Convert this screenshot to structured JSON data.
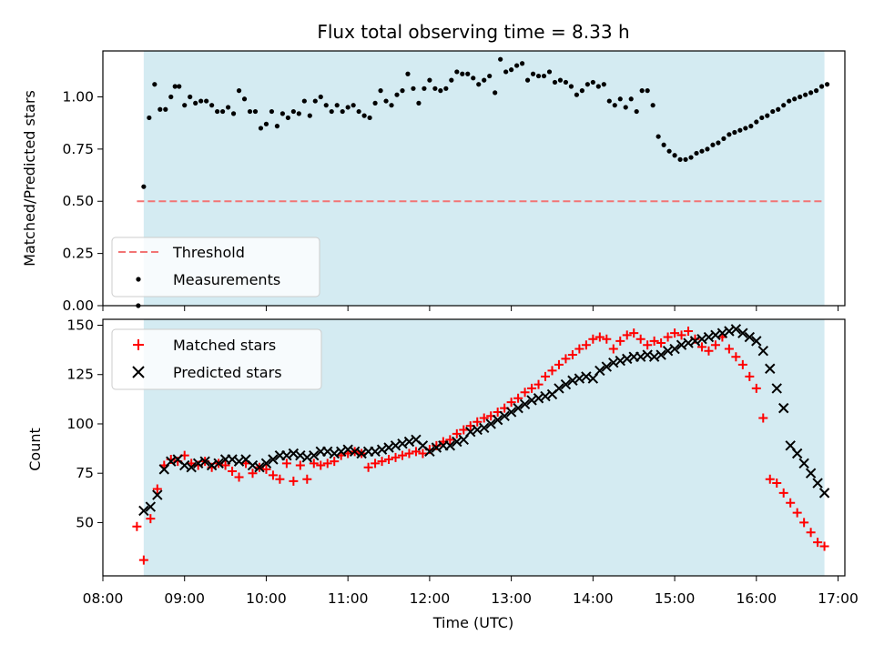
{
  "chart_data": [
    {
      "type": "scatter",
      "title": "Flux total observing time = 8.33 h",
      "xlabel": "",
      "ylabel": "Matched/Predicted stars",
      "xlim": [
        "08:00",
        "17:05"
      ],
      "ylim": [
        0,
        1.22
      ],
      "yticks": [
        "0.00",
        "0.25",
        "0.50",
        "0.75",
        "1.00"
      ],
      "shaded_region": {
        "start": "08:30",
        "end": "16:50",
        "color": "#d4ebf2"
      },
      "legend_position": "lower-left",
      "threshold": {
        "name": "Threshold",
        "value": 0.5,
        "start": "08:25",
        "end": "16:50",
        "color": "#f27474"
      },
      "series": [
        {
          "name": "Measurements",
          "color": "#000000",
          "marker": "dot",
          "x": [
            "08:26",
            "08:30",
            "08:34",
            "08:38",
            "08:42",
            "08:46",
            "08:50",
            "08:53",
            "08:56",
            "09:00",
            "09:04",
            "09:08",
            "09:12",
            "09:16",
            "09:20",
            "09:24",
            "09:28",
            "09:32",
            "09:36",
            "09:40",
            "09:44",
            "09:48",
            "09:52",
            "09:56",
            "10:00",
            "10:04",
            "10:08",
            "10:12",
            "10:16",
            "10:20",
            "10:24",
            "10:28",
            "10:32",
            "10:36",
            "10:40",
            "10:44",
            "10:48",
            "10:52",
            "10:56",
            "11:00",
            "11:04",
            "11:08",
            "11:12",
            "11:16",
            "11:20",
            "11:24",
            "11:28",
            "11:32",
            "11:36",
            "11:40",
            "11:44",
            "11:48",
            "11:52",
            "11:56",
            "12:00",
            "12:04",
            "12:08",
            "12:12",
            "12:16",
            "12:20",
            "12:24",
            "12:28",
            "12:32",
            "12:36",
            "12:40",
            "12:44",
            "12:48",
            "12:52",
            "12:56",
            "13:00",
            "13:04",
            "13:08",
            "13:12",
            "13:16",
            "13:20",
            "13:24",
            "13:28",
            "13:32",
            "13:36",
            "13:40",
            "13:44",
            "13:48",
            "13:52",
            "13:56",
            "14:00",
            "14:04",
            "14:08",
            "14:12",
            "14:16",
            "14:20",
            "14:24",
            "14:28",
            "14:32",
            "14:36",
            "14:40",
            "14:44",
            "14:48",
            "14:52",
            "14:56",
            "15:00",
            "15:04",
            "15:08",
            "15:12",
            "15:16",
            "15:20",
            "15:24",
            "15:28",
            "15:32",
            "15:36",
            "15:40",
            "15:44",
            "15:48",
            "15:52",
            "15:56",
            "16:00",
            "16:04",
            "16:08",
            "16:12",
            "16:16",
            "16:20",
            "16:24",
            "16:28",
            "16:32",
            "16:36",
            "16:40",
            "16:44",
            "16:48",
            "16:52"
          ],
          "y": [
            0.0,
            0.57,
            0.9,
            1.06,
            0.94,
            0.94,
            1.0,
            1.05,
            1.05,
            0.96,
            1.0,
            0.97,
            0.98,
            0.98,
            0.96,
            0.93,
            0.93,
            0.95,
            0.92,
            1.03,
            0.99,
            0.93,
            0.93,
            0.85,
            0.87,
            0.93,
            0.86,
            0.92,
            0.9,
            0.93,
            0.92,
            0.98,
            0.91,
            0.98,
            1.0,
            0.96,
            0.93,
            0.96,
            0.93,
            0.95,
            0.96,
            0.93,
            0.91,
            0.9,
            0.97,
            1.03,
            0.98,
            0.96,
            1.01,
            1.03,
            1.11,
            1.04,
            0.97,
            1.04,
            1.08,
            1.04,
            1.03,
            1.04,
            1.08,
            1.12,
            1.11,
            1.11,
            1.09,
            1.06,
            1.08,
            1.1,
            1.02,
            1.18,
            1.12,
            1.13,
            1.15,
            1.16,
            1.08,
            1.11,
            1.1,
            1.1,
            1.12,
            1.07,
            1.08,
            1.07,
            1.05,
            1.01,
            1.03,
            1.06,
            1.07,
            1.05,
            1.06,
            0.98,
            0.96,
            0.99,
            0.95,
            0.99,
            0.93,
            1.03,
            1.03,
            0.96,
            0.81,
            0.77,
            0.74,
            0.72,
            0.7,
            0.7,
            0.71,
            0.73,
            0.74,
            0.75,
            0.77,
            0.78,
            0.8,
            0.82,
            0.83,
            0.84,
            0.85,
            0.86,
            0.88,
            0.9,
            0.91,
            0.93,
            0.94,
            0.96,
            0.98,
            0.99,
            1.0,
            1.01,
            1.02,
            1.03,
            1.05,
            1.06
          ]
        }
      ]
    },
    {
      "type": "scatter",
      "title": "",
      "xlabel": "Time (UTC)",
      "ylabel": "Count",
      "xlim": [
        "08:00",
        "17:05"
      ],
      "ylim": [
        23,
        153
      ],
      "xticks": [
        "08:00",
        "09:00",
        "10:00",
        "11:00",
        "12:00",
        "13:00",
        "14:00",
        "15:00",
        "16:00",
        "17:00"
      ],
      "yticks": [
        "50",
        "75",
        "100",
        "125",
        "150"
      ],
      "shaded_region": {
        "start": "08:30",
        "end": "16:50",
        "color": "#d4ebf2"
      },
      "legend_position": "upper-left",
      "series": [
        {
          "name": "Matched stars",
          "color": "#ff0000",
          "marker": "plus",
          "x": [
            "08:25",
            "08:30",
            "08:35",
            "08:40",
            "08:45",
            "08:50",
            "08:55",
            "09:00",
            "09:05",
            "09:10",
            "09:15",
            "09:20",
            "09:25",
            "09:30",
            "09:35",
            "09:40",
            "09:45",
            "09:50",
            "09:55",
            "10:00",
            "10:05",
            "10:10",
            "10:15",
            "10:20",
            "10:25",
            "10:30",
            "10:35",
            "10:40",
            "10:45",
            "10:50",
            "10:55",
            "11:00",
            "11:05",
            "11:10",
            "11:15",
            "11:20",
            "11:25",
            "11:30",
            "11:35",
            "11:40",
            "11:45",
            "11:50",
            "11:55",
            "12:00",
            "12:05",
            "12:10",
            "12:15",
            "12:20",
            "12:25",
            "12:30",
            "12:35",
            "12:40",
            "12:45",
            "12:50",
            "12:55",
            "13:00",
            "13:05",
            "13:10",
            "13:15",
            "13:20",
            "13:25",
            "13:30",
            "13:35",
            "13:40",
            "13:45",
            "13:50",
            "13:55",
            "14:00",
            "14:05",
            "14:10",
            "14:15",
            "14:20",
            "14:25",
            "14:30",
            "14:35",
            "14:40",
            "14:45",
            "14:50",
            "14:55",
            "15:00",
            "15:05",
            "15:10",
            "15:15",
            "15:20",
            "15:25",
            "15:30",
            "15:35",
            "15:40",
            "15:45",
            "15:50",
            "15:55",
            "16:00",
            "16:05",
            "16:10",
            "16:15",
            "16:20",
            "16:25",
            "16:30",
            "16:35",
            "16:40",
            "16:45",
            "16:50"
          ],
          "y": [
            48,
            31,
            52,
            67,
            79,
            82,
            81,
            84,
            80,
            79,
            81,
            78,
            80,
            79,
            76,
            73,
            80,
            75,
            78,
            77,
            74,
            72,
            80,
            71,
            79,
            72,
            80,
            79,
            80,
            81,
            84,
            85,
            86,
            85,
            78,
            80,
            81,
            82,
            83,
            84,
            85,
            86,
            85,
            87,
            89,
            91,
            92,
            95,
            97,
            99,
            101,
            103,
            104,
            106,
            108,
            111,
            113,
            116,
            118,
            120,
            124,
            127,
            130,
            133,
            135,
            138,
            140,
            143,
            144,
            143,
            138,
            142,
            145,
            146,
            143,
            140,
            142,
            141,
            144,
            146,
            145,
            147,
            143,
            139,
            137,
            140,
            144,
            138,
            134,
            130,
            124,
            118,
            103,
            72,
            70,
            65,
            60,
            55,
            50,
            45,
            40,
            38
          ],
          "note": ""
        },
        {
          "name": "Predicted stars",
          "color": "#000000",
          "marker": "x",
          "x": [
            "08:30",
            "08:35",
            "08:40",
            "08:45",
            "08:50",
            "08:55",
            "09:00",
            "09:05",
            "09:10",
            "09:15",
            "09:20",
            "09:25",
            "09:30",
            "09:35",
            "09:40",
            "09:45",
            "09:50",
            "09:55",
            "10:00",
            "10:05",
            "10:10",
            "10:15",
            "10:20",
            "10:25",
            "10:30",
            "10:35",
            "10:40",
            "10:45",
            "10:50",
            "10:55",
            "11:00",
            "11:05",
            "11:10",
            "11:15",
            "11:20",
            "11:25",
            "11:30",
            "11:35",
            "11:40",
            "11:45",
            "11:50",
            "11:55",
            "12:00",
            "12:05",
            "12:10",
            "12:15",
            "12:20",
            "12:25",
            "12:30",
            "12:35",
            "12:40",
            "12:45",
            "12:50",
            "12:55",
            "13:00",
            "13:05",
            "13:10",
            "13:15",
            "13:20",
            "13:25",
            "13:30",
            "13:35",
            "13:40",
            "13:45",
            "13:50",
            "13:55",
            "14:00",
            "14:05",
            "14:10",
            "14:15",
            "14:20",
            "14:25",
            "14:30",
            "14:35",
            "14:40",
            "14:45",
            "14:50",
            "14:55",
            "15:00",
            "15:05",
            "15:10",
            "15:15",
            "15:20",
            "15:25",
            "15:30",
            "15:35",
            "15:40",
            "15:45",
            "15:50",
            "15:55",
            "16:00",
            "16:05",
            "16:10",
            "16:15",
            "16:20",
            "16:25",
            "16:30",
            "16:35",
            "16:40",
            "16:45",
            "16:50"
          ],
          "y": [
            56,
            58,
            64,
            77,
            81,
            82,
            79,
            78,
            80,
            81,
            79,
            80,
            82,
            82,
            81,
            82,
            79,
            78,
            80,
            82,
            84,
            84,
            85,
            84,
            83,
            84,
            86,
            86,
            85,
            86,
            87,
            86,
            85,
            86,
            86,
            87,
            88,
            89,
            90,
            91,
            92,
            89,
            86,
            88,
            89,
            89,
            91,
            92,
            96,
            97,
            98,
            100,
            102,
            104,
            106,
            108,
            110,
            112,
            113,
            114,
            115,
            118,
            120,
            122,
            123,
            124,
            123,
            127,
            129,
            131,
            132,
            133,
            134,
            134,
            135,
            134,
            135,
            137,
            138,
            140,
            141,
            142,
            143,
            144,
            145,
            146,
            147,
            148,
            146,
            144,
            142,
            137,
            128,
            118,
            108,
            89,
            85,
            80,
            75,
            70,
            65
          ]
        }
      ]
    }
  ]
}
